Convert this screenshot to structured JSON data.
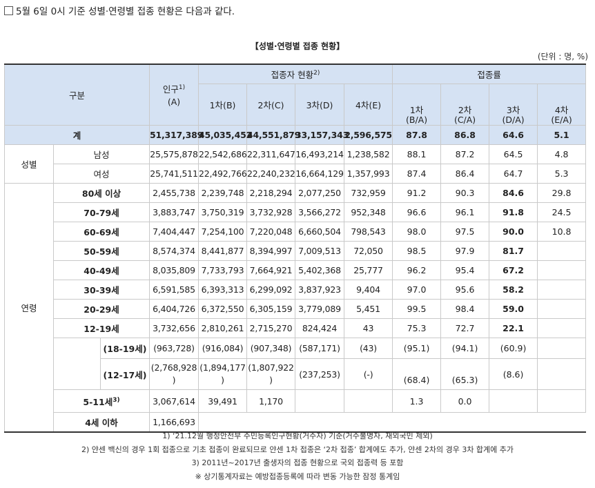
{
  "intro": "5월 6일 0시 기준 성별·연령별 접종 현황은 다음과 같다.",
  "title": "【성별·연령별 접종 현황】",
  "unit": "(단위 : 명, %)",
  "header": {
    "category": "구분",
    "population": "인구",
    "population_sup": "1)",
    "population_sub": "(A)",
    "status": "접종자 현황",
    "status_sup": "2)",
    "rate": "접종률",
    "dose1": "1차(B)",
    "dose2": "2차(C)",
    "dose3": "3차(D)",
    "dose4": "4차(E)",
    "rate1": "1차",
    "rate1_sub": "(B/A)",
    "rate2": "2차",
    "rate2_sub": "(C/A)",
    "rate3": "3차",
    "rate3_sub": "(D/A)",
    "rate4": "4차",
    "rate4_sub": "(E/A)"
  },
  "total": {
    "label": "계",
    "pop": "51,317,389",
    "d1": "45,035,452",
    "d2": "44,551,879",
    "d3": "33,157,343",
    "d4": "2,596,575",
    "r1": "87.8",
    "r2": "86.8",
    "r3": "64.6",
    "r4": "5.1"
  },
  "sex": {
    "group": "성별",
    "rows": [
      {
        "label": "남성",
        "pop": "25,575,878",
        "d1": "22,542,686",
        "d2": "22,311,647",
        "d3": "16,493,214",
        "d4": "1,238,582",
        "r1": "88.1",
        "r2": "87.2",
        "r3": "64.5",
        "r4": "4.8"
      },
      {
        "label": "여성",
        "pop": "25,741,511",
        "d1": "22,492,766",
        "d2": "22,240,232",
        "d3": "16,664,129",
        "d4": "1,357,993",
        "r1": "87.4",
        "r2": "86.4",
        "r3": "64.7",
        "r4": "5.3"
      }
    ]
  },
  "age": {
    "group": "연령",
    "rows": [
      {
        "label": "80세 이상",
        "pop": "2,455,738",
        "d1": "2,239,748",
        "d2": "2,218,294",
        "d3": "2,077,250",
        "d4": "732,959",
        "r1": "91.2",
        "r2": "90.3",
        "r3": "84.6",
        "r4": "29.8"
      },
      {
        "label": "70-79세",
        "pop": "3,883,747",
        "d1": "3,750,319",
        "d2": "3,732,928",
        "d3": "3,566,272",
        "d4": "952,348",
        "r1": "96.6",
        "r2": "96.1",
        "r3": "91.8",
        "r4": "24.5"
      },
      {
        "label": "60-69세",
        "pop": "7,404,447",
        "d1": "7,254,100",
        "d2": "7,220,048",
        "d3": "6,660,504",
        "d4": "798,543",
        "r1": "98.0",
        "r2": "97.5",
        "r3": "90.0",
        "r4": "10.8"
      },
      {
        "label": "50-59세",
        "pop": "8,574,374",
        "d1": "8,441,877",
        "d2": "8,394,997",
        "d3": "7,009,513",
        "d4": "72,050",
        "r1": "98.5",
        "r2": "97.9",
        "r3": "81.7",
        "r4": ""
      },
      {
        "label": "40-49세",
        "pop": "8,035,809",
        "d1": "7,733,793",
        "d2": "7,664,921",
        "d3": "5,402,368",
        "d4": "25,777",
        "r1": "96.2",
        "r2": "95.4",
        "r3": "67.2",
        "r4": ""
      },
      {
        "label": "30-39세",
        "pop": "6,591,585",
        "d1": "6,393,313",
        "d2": "6,299,092",
        "d3": "3,837,923",
        "d4": "9,404",
        "r1": "97.0",
        "r2": "95.6",
        "r3": "58.2",
        "r4": ""
      },
      {
        "label": "20-29세",
        "pop": "6,404,726",
        "d1": "6,372,550",
        "d2": "6,305,159",
        "d3": "3,779,089",
        "d4": "5,451",
        "r1": "99.5",
        "r2": "98.4",
        "r3": "59.0",
        "r4": ""
      },
      {
        "label": "12-19세",
        "pop": "3,732,656",
        "d1": "2,810,261",
        "d2": "2,715,270",
        "d3": "824,424",
        "d4": "43",
        "r1": "75.3",
        "r2": "72.7",
        "r3": "22.1",
        "r4": ""
      }
    ],
    "sub1": {
      "label": "(18-19세)",
      "pop": "(963,728)",
      "d1": "(916,084)",
      "d2": "(907,348)",
      "d3": "(587,171)",
      "d4": "(43)",
      "r1": "(95.1)",
      "r2": "(94.1)",
      "r3": "(60.9)",
      "r4": ""
    },
    "sub2": {
      "label": "(12-17세)",
      "pop": "(2,768,928",
      "pop2": ")",
      "d1": "(1,894,177",
      "d1b": ")",
      "d2": "(1,807,922",
      "d2b": ")",
      "d3": "(237,253)",
      "d4": "(-)",
      "r1": "(68.4)",
      "r2": "(65.3)",
      "r3": "(8.6)",
      "r4": ""
    },
    "kids": {
      "label": "5-11세",
      "sup": "3)",
      "pop": "3,067,614",
      "d1": "39,491",
      "d2": "1,170",
      "d3": "",
      "d4": "",
      "r1": "1.3",
      "r2": "0.0",
      "r3": "",
      "r4": ""
    },
    "infant": {
      "label": "4세 이하",
      "pop": "1,166,693"
    }
  },
  "notes": [
    "1) ‘21.12월 행정안전부 주민등록인구현황(거주자) 기준(거주불명자, 재외국민 제외)",
    "2) 얀센 백신의 경우 1회 접종으로 기초 접종이 완료되므로 얀센 1차 접종은 ‘2차 접종’ 합계에도 추가, 얀센 2차의 경우 3차 합계에 추가",
    "3) 2011년~2017년 출생자의 접종 현황으로 국외 접종력 등 포함",
    "※ 상기통계자료는 예방접종등록에 따라 변동 가능한 잠정 통계임"
  ]
}
